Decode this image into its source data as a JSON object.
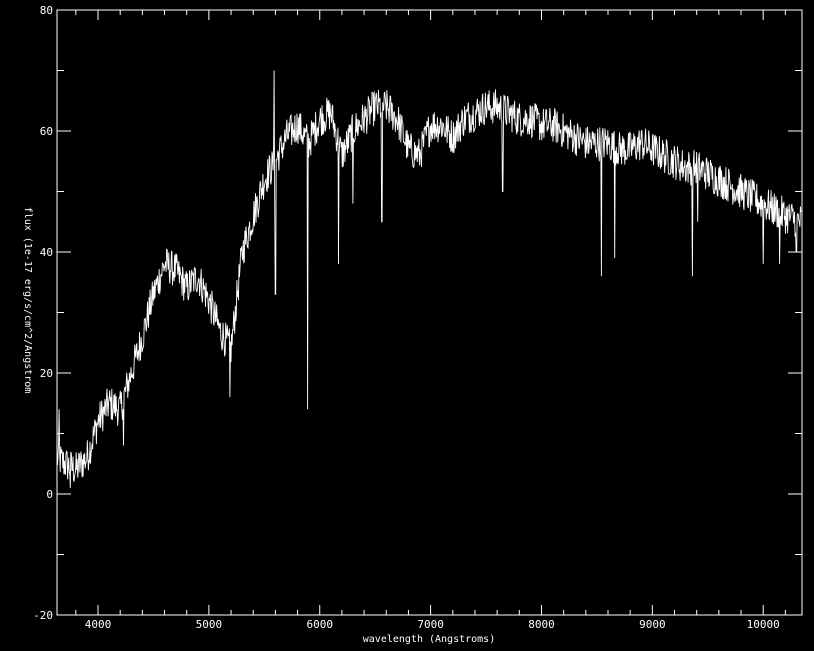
{
  "chart_data": {
    "type": "line",
    "xlabel": "wavelength (Angstroms)",
    "ylabel": "flux (1e-17 erg/s/cm^2/Angstrom",
    "xlim": [
      3630,
      10350
    ],
    "ylim": [
      -20,
      80
    ],
    "x_ticks": [
      4000,
      5000,
      6000,
      7000,
      8000,
      9000,
      10000
    ],
    "y_ticks": [
      -20,
      0,
      20,
      40,
      60,
      80
    ],
    "x_minor_step": 200,
    "y_minor_step": 10,
    "colors": {
      "background": "#000000",
      "foreground": "#ffffff"
    },
    "grid": false,
    "series": [
      {
        "noise_amplitude": 3,
        "continuum": [
          [
            3630,
            6
          ],
          [
            3700,
            5
          ],
          [
            3800,
            4
          ],
          [
            3900,
            6
          ],
          [
            4000,
            12
          ],
          [
            4100,
            15
          ],
          [
            4200,
            14
          ],
          [
            4300,
            20
          ],
          [
            4400,
            26
          ],
          [
            4500,
            33
          ],
          [
            4600,
            38
          ],
          [
            4700,
            37
          ],
          [
            4800,
            34
          ],
          [
            4900,
            36
          ],
          [
            5000,
            32
          ],
          [
            5100,
            27
          ],
          [
            5200,
            24
          ],
          [
            5300,
            40
          ],
          [
            5400,
            46
          ],
          [
            5500,
            52
          ],
          [
            5600,
            55
          ],
          [
            5700,
            59
          ],
          [
            5800,
            61
          ],
          [
            5900,
            58
          ],
          [
            6000,
            62
          ],
          [
            6100,
            63
          ],
          [
            6200,
            56
          ],
          [
            6300,
            60
          ],
          [
            6400,
            62
          ],
          [
            6500,
            64
          ],
          [
            6600,
            64
          ],
          [
            6700,
            62
          ],
          [
            6800,
            57
          ],
          [
            6900,
            56
          ],
          [
            7000,
            61
          ],
          [
            7100,
            61
          ],
          [
            7200,
            59
          ],
          [
            7300,
            62
          ],
          [
            7400,
            63
          ],
          [
            7500,
            64
          ],
          [
            7600,
            64
          ],
          [
            7700,
            63
          ],
          [
            7800,
            62
          ],
          [
            7900,
            62
          ],
          [
            8000,
            61
          ],
          [
            8100,
            61
          ],
          [
            8200,
            60
          ],
          [
            8300,
            59
          ],
          [
            8400,
            58
          ],
          [
            8500,
            58
          ],
          [
            8600,
            58
          ],
          [
            8700,
            57
          ],
          [
            8800,
            57
          ],
          [
            8900,
            58
          ],
          [
            9000,
            57
          ],
          [
            9100,
            56
          ],
          [
            9200,
            55
          ],
          [
            9300,
            54
          ],
          [
            9400,
            54
          ],
          [
            9500,
            53
          ],
          [
            9600,
            52
          ],
          [
            9700,
            51
          ],
          [
            9800,
            50
          ],
          [
            9900,
            49
          ],
          [
            10000,
            48
          ],
          [
            10100,
            47
          ],
          [
            10200,
            46
          ],
          [
            10350,
            45
          ]
        ],
        "spikes": [
          [
            3650,
            14
          ],
          [
            3750,
            1
          ],
          [
            4230,
            8
          ],
          [
            5190,
            16
          ],
          [
            5590,
            70
          ],
          [
            5600,
            33
          ],
          [
            5890,
            14
          ],
          [
            6170,
            38
          ],
          [
            6300,
            48
          ],
          [
            6560,
            45
          ],
          [
            7650,
            50
          ],
          [
            8540,
            36
          ],
          [
            8660,
            39
          ],
          [
            9360,
            36
          ],
          [
            9410,
            45
          ],
          [
            10000,
            38
          ],
          [
            10150,
            38
          ],
          [
            10300,
            40
          ]
        ]
      }
    ]
  }
}
